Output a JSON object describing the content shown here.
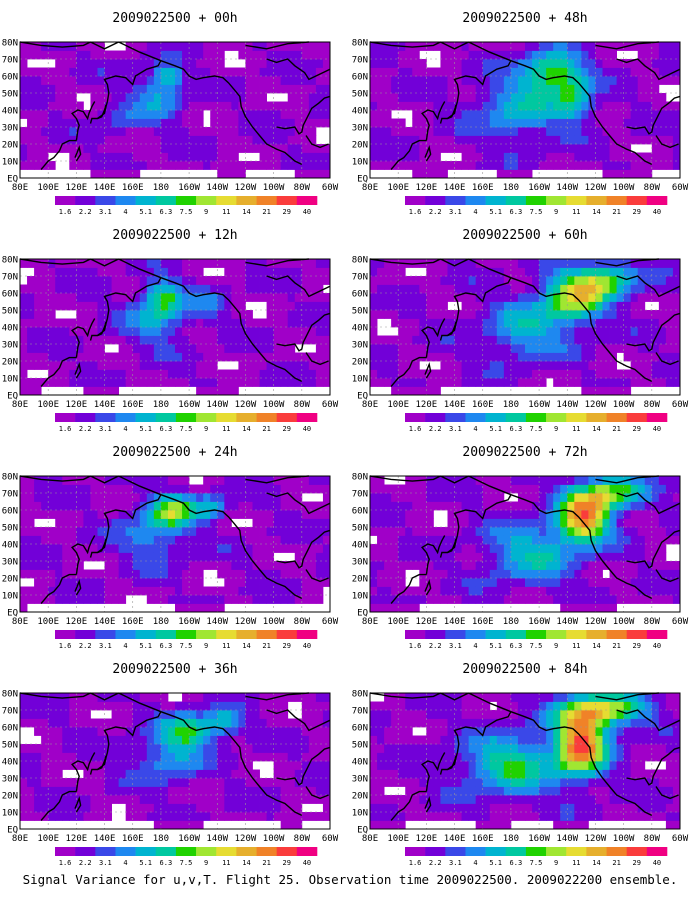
{
  "figure": {
    "caption": "Signal Variance for u,v,T. Flight 25. Observation time 2009022500. 2009022200 ensemble."
  },
  "chart_data": {
    "type": "heatmap",
    "colorbar": {
      "tick_labels": [
        "1.6",
        "2.2",
        "3.1",
        "4",
        "5.1",
        "6.3",
        "7.5",
        "9",
        "11",
        "14",
        "21",
        "29",
        "40"
      ],
      "colors": [
        "#a000c8",
        "#7200d8",
        "#3a48e8",
        "#1e88f0",
        "#00b4d0",
        "#00c8a0",
        "#20d200",
        "#a0e632",
        "#e6dc32",
        "#e6af2d",
        "#f08228",
        "#fa3c3c",
        "#f00082"
      ]
    },
    "x_tick_labels": [
      "80E",
      "100E",
      "120E",
      "140E",
      "160E",
      "180",
      "160W",
      "140W",
      "120W",
      "100W",
      "80W",
      "60W"
    ],
    "y_tick_labels": [
      "EQ",
      "10N",
      "20N",
      "30N",
      "40N",
      "50N",
      "60N",
      "70N",
      "80N"
    ],
    "panels": [
      {
        "title": "2009022500 + 00h",
        "hotspots": [
          {
            "lon": 185,
            "lat": 60,
            "sx": 10,
            "sy": 7,
            "v": 4
          },
          {
            "lon": 178,
            "lat": 48,
            "sx": 18,
            "sy": 14,
            "v": 3
          },
          {
            "lon": 150,
            "lat": 35,
            "sx": 15,
            "sy": 10,
            "v": 1.5
          }
        ]
      },
      {
        "title": "2009022500 + 12h",
        "hotspots": [
          {
            "lon": 182,
            "lat": 58,
            "sx": 14,
            "sy": 10,
            "v": 4.5
          },
          {
            "lon": 178,
            "lat": 45,
            "sx": 22,
            "sy": 15,
            "v": 3
          },
          {
            "lon": 215,
            "lat": 55,
            "sx": 12,
            "sy": 8,
            "v": 2
          }
        ]
      },
      {
        "title": "2009022500 + 24h",
        "hotspots": [
          {
            "lon": 188,
            "lat": 60,
            "sx": 16,
            "sy": 10,
            "v": 5.5
          },
          {
            "lon": 215,
            "lat": 62,
            "sx": 12,
            "sy": 8,
            "v": 3.5
          },
          {
            "lon": 175,
            "lat": 45,
            "sx": 24,
            "sy": 15,
            "v": 3
          }
        ]
      },
      {
        "title": "2009022500 + 36h",
        "hotspots": [
          {
            "lon": 200,
            "lat": 58,
            "sx": 18,
            "sy": 10,
            "v": 5
          },
          {
            "lon": 225,
            "lat": 63,
            "sx": 12,
            "sy": 8,
            "v": 4
          },
          {
            "lon": 185,
            "lat": 42,
            "sx": 24,
            "sy": 15,
            "v": 3
          }
        ]
      },
      {
        "title": "2009022500 + 48h",
        "hotspots": [
          {
            "lon": 210,
            "lat": 62,
            "sx": 22,
            "sy": 12,
            "v": 6
          },
          {
            "lon": 225,
            "lat": 45,
            "sx": 14,
            "sy": 12,
            "v": 4
          },
          {
            "lon": 185,
            "lat": 40,
            "sx": 30,
            "sy": 18,
            "v": 3.5
          }
        ]
      },
      {
        "title": "2009022500 + 60h",
        "hotspots": [
          {
            "lon": 225,
            "lat": 58,
            "sx": 22,
            "sy": 15,
            "v": 7
          },
          {
            "lon": 250,
            "lat": 68,
            "sx": 22,
            "sy": 10,
            "v": 5
          },
          {
            "lon": 190,
            "lat": 38,
            "sx": 30,
            "sy": 18,
            "v": 3.5
          }
        ]
      },
      {
        "title": "2009022500 + 72h",
        "hotspots": [
          {
            "lon": 232,
            "lat": 55,
            "sx": 18,
            "sy": 14,
            "v": 9
          },
          {
            "lon": 250,
            "lat": 70,
            "sx": 26,
            "sy": 10,
            "v": 6
          },
          {
            "lon": 195,
            "lat": 35,
            "sx": 32,
            "sy": 18,
            "v": 4
          }
        ]
      },
      {
        "title": "2009022500 + 84h",
        "hotspots": [
          {
            "lon": 230,
            "lat": 50,
            "sx": 18,
            "sy": 18,
            "v": 10
          },
          {
            "lon": 245,
            "lat": 70,
            "sx": 30,
            "sy": 10,
            "v": 7
          },
          {
            "lon": 180,
            "lat": 38,
            "sx": 34,
            "sy": 18,
            "v": 5
          }
        ]
      }
    ]
  }
}
